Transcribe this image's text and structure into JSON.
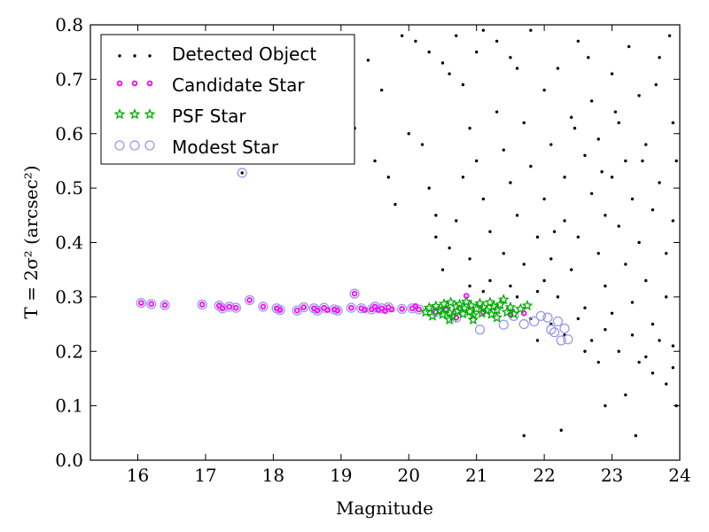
{
  "chart_data": {
    "type": "scatter",
    "xlabel": "Magnitude",
    "ylabel": "T = 2σ² (arcsec²)",
    "xlim": [
      15.3,
      24.0
    ],
    "ylim": [
      0.0,
      0.8
    ],
    "xticks": [
      16,
      17,
      18,
      19,
      20,
      21,
      22,
      23,
      24
    ],
    "yticks": [
      0.0,
      0.1,
      0.2,
      0.3,
      0.4,
      0.5,
      0.6,
      0.7,
      0.8
    ],
    "grid": false,
    "legend_position": "top-left",
    "colors": {
      "detected": "#000000",
      "candidate": "#ff00ff",
      "psf": "#00aa00",
      "modest": "#9999ee"
    },
    "series": [
      {
        "name": "Detected Object",
        "marker": "dot",
        "points": [
          [
            17.54,
            0.528
          ],
          [
            19.2,
            0.61
          ],
          [
            18.9,
            0.73
          ],
          [
            19.4,
            0.735
          ],
          [
            19.6,
            0.68
          ],
          [
            19.9,
            0.78
          ],
          [
            20.1,
            0.77
          ],
          [
            20.3,
            0.75
          ],
          [
            20.5,
            0.73
          ],
          [
            20.6,
            0.71
          ],
          [
            20.7,
            0.78
          ],
          [
            20.8,
            0.69
          ],
          [
            21.0,
            0.75
          ],
          [
            21.1,
            0.79
          ],
          [
            21.3,
            0.77
          ],
          [
            21.5,
            0.74
          ],
          [
            21.6,
            0.72
          ],
          [
            21.8,
            0.79
          ],
          [
            19.5,
            0.55
          ],
          [
            19.7,
            0.52
          ],
          [
            19.8,
            0.47
          ],
          [
            20.0,
            0.6
          ],
          [
            20.2,
            0.58
          ],
          [
            20.3,
            0.5
          ],
          [
            20.4,
            0.45
          ],
          [
            20.4,
            0.41
          ],
          [
            20.5,
            0.35
          ],
          [
            20.6,
            0.39
          ],
          [
            20.7,
            0.44
          ],
          [
            20.8,
            0.52
          ],
          [
            20.9,
            0.61
          ],
          [
            20.9,
            0.37
          ],
          [
            21.0,
            0.55
          ],
          [
            21.1,
            0.48
          ],
          [
            21.2,
            0.42
          ],
          [
            21.2,
            0.33
          ],
          [
            21.3,
            0.64
          ],
          [
            21.4,
            0.57
          ],
          [
            21.4,
            0.38
          ],
          [
            21.5,
            0.51
          ],
          [
            21.6,
            0.45
          ],
          [
            21.7,
            0.36
          ],
          [
            21.7,
            0.62
          ],
          [
            21.8,
            0.54
          ],
          [
            21.9,
            0.41
          ],
          [
            21.9,
            0.31
          ],
          [
            22.0,
            0.68
          ],
          [
            22.0,
            0.48
          ],
          [
            22.1,
            0.58
          ],
          [
            22.1,
            0.37
          ],
          [
            22.2,
            0.72
          ],
          [
            22.2,
            0.3
          ],
          [
            22.3,
            0.52
          ],
          [
            22.3,
            0.44
          ],
          [
            22.4,
            0.63
          ],
          [
            22.4,
            0.35
          ],
          [
            22.5,
            0.77
          ],
          [
            22.5,
            0.41
          ],
          [
            22.6,
            0.56
          ],
          [
            22.6,
            0.28
          ],
          [
            22.7,
            0.49
          ],
          [
            22.7,
            0.66
          ],
          [
            22.8,
            0.38
          ],
          [
            22.8,
            0.59
          ],
          [
            22.9,
            0.45
          ],
          [
            22.9,
            0.32
          ],
          [
            23.0,
            0.71
          ],
          [
            23.0,
            0.52
          ],
          [
            23.0,
            0.27
          ],
          [
            23.1,
            0.43
          ],
          [
            23.1,
            0.62
          ],
          [
            23.2,
            0.36
          ],
          [
            23.2,
            0.55
          ],
          [
            23.3,
            0.48
          ],
          [
            23.3,
            0.29
          ],
          [
            23.4,
            0.67
          ],
          [
            23.4,
            0.4
          ],
          [
            23.5,
            0.58
          ],
          [
            23.5,
            0.33
          ],
          [
            23.6,
            0.46
          ],
          [
            23.6,
            0.25
          ],
          [
            23.7,
            0.74
          ],
          [
            23.7,
            0.51
          ],
          [
            23.8,
            0.38
          ],
          [
            23.8,
            0.3
          ],
          [
            23.9,
            0.62
          ],
          [
            23.9,
            0.44
          ],
          [
            23.9,
            0.21
          ],
          [
            22.1,
            0.25
          ],
          [
            22.3,
            0.23
          ],
          [
            22.5,
            0.26
          ],
          [
            22.7,
            0.22
          ],
          [
            22.9,
            0.24
          ],
          [
            23.1,
            0.2
          ],
          [
            23.3,
            0.23
          ],
          [
            23.5,
            0.19
          ],
          [
            23.7,
            0.22
          ],
          [
            23.9,
            0.17
          ],
          [
            23.8,
            0.14
          ],
          [
            23.6,
            0.16
          ],
          [
            23.4,
            0.18
          ],
          [
            23.2,
            0.12
          ],
          [
            22.8,
            0.18
          ],
          [
            22.6,
            0.2
          ],
          [
            22.9,
            0.1
          ],
          [
            23.95,
            0.1
          ],
          [
            21.7,
            0.045
          ],
          [
            22.25,
            0.055
          ],
          [
            23.35,
            0.045
          ],
          [
            21.9,
            0.22
          ],
          [
            21.6,
            0.3
          ],
          [
            21.8,
            0.26
          ],
          [
            22.0,
            0.33
          ],
          [
            20.9,
            0.32
          ],
          [
            21.1,
            0.31
          ],
          [
            21.5,
            0.32
          ],
          [
            22.15,
            0.42
          ],
          [
            22.45,
            0.61
          ],
          [
            22.65,
            0.74
          ],
          [
            22.85,
            0.53
          ],
          [
            23.05,
            0.64
          ],
          [
            23.25,
            0.76
          ],
          [
            23.45,
            0.55
          ],
          [
            23.65,
            0.69
          ],
          [
            23.85,
            0.78
          ],
          [
            23.95,
            0.55
          ]
        ]
      },
      {
        "name": "Candidate Star",
        "marker": "ring",
        "points": [
          [
            16.05,
            0.289
          ],
          [
            16.2,
            0.287
          ],
          [
            16.4,
            0.285
          ],
          [
            16.95,
            0.286
          ],
          [
            17.2,
            0.284
          ],
          [
            17.25,
            0.279
          ],
          [
            17.35,
            0.282
          ],
          [
            17.45,
            0.28
          ],
          [
            17.65,
            0.294
          ],
          [
            17.85,
            0.282
          ],
          [
            18.05,
            0.279
          ],
          [
            18.1,
            0.276
          ],
          [
            18.35,
            0.275
          ],
          [
            18.45,
            0.281
          ],
          [
            18.6,
            0.279
          ],
          [
            18.65,
            0.275
          ],
          [
            18.75,
            0.28
          ],
          [
            18.8,
            0.276
          ],
          [
            18.9,
            0.277
          ],
          [
            18.95,
            0.275
          ],
          [
            19.15,
            0.28
          ],
          [
            19.2,
            0.306
          ],
          [
            19.3,
            0.279
          ],
          [
            19.35,
            0.276
          ],
          [
            19.45,
            0.277
          ],
          [
            19.5,
            0.282
          ],
          [
            19.55,
            0.276
          ],
          [
            19.6,
            0.279
          ],
          [
            19.65,
            0.274
          ],
          [
            19.7,
            0.281
          ],
          [
            19.75,
            0.277
          ],
          [
            19.9,
            0.278
          ],
          [
            20.05,
            0.279
          ],
          [
            20.1,
            0.283
          ],
          [
            20.15,
            0.277
          ],
          [
            20.4,
            0.272
          ],
          [
            20.55,
            0.276
          ],
          [
            20.7,
            0.262
          ],
          [
            20.85,
            0.302
          ],
          [
            21.1,
            0.272
          ],
          [
            21.5,
            0.268
          ],
          [
            21.7,
            0.27
          ]
        ]
      },
      {
        "name": "PSF Star",
        "marker": "star",
        "points": [
          [
            20.25,
            0.272
          ],
          [
            20.3,
            0.28
          ],
          [
            20.35,
            0.265
          ],
          [
            20.4,
            0.283
          ],
          [
            20.45,
            0.275
          ],
          [
            20.5,
            0.268
          ],
          [
            20.52,
            0.287
          ],
          [
            20.55,
            0.278
          ],
          [
            20.6,
            0.271
          ],
          [
            20.62,
            0.29
          ],
          [
            20.65,
            0.264
          ],
          [
            20.7,
            0.282
          ],
          [
            20.72,
            0.274
          ],
          [
            20.75,
            0.286
          ],
          [
            20.8,
            0.269
          ],
          [
            20.82,
            0.279
          ],
          [
            20.85,
            0.291
          ],
          [
            20.9,
            0.273
          ],
          [
            20.92,
            0.284
          ],
          [
            20.95,
            0.266
          ],
          [
            21.0,
            0.278
          ],
          [
            21.05,
            0.288
          ],
          [
            21.08,
            0.27
          ],
          [
            21.1,
            0.281
          ],
          [
            21.15,
            0.275
          ],
          [
            21.2,
            0.29
          ],
          [
            21.22,
            0.268
          ],
          [
            21.25,
            0.283
          ],
          [
            21.3,
            0.276
          ],
          [
            21.35,
            0.286
          ],
          [
            21.4,
            0.295
          ],
          [
            21.45,
            0.272
          ],
          [
            21.5,
            0.281
          ],
          [
            21.55,
            0.269
          ],
          [
            21.65,
            0.278
          ],
          [
            21.75,
            0.284
          ],
          [
            20.6,
            0.258
          ],
          [
            20.95,
            0.258
          ],
          [
            21.3,
            0.262
          ]
        ]
      },
      {
        "name": "Modest Star",
        "marker": "circle",
        "points": [
          [
            17.54,
            0.528
          ],
          [
            16.05,
            0.289
          ],
          [
            16.2,
            0.287
          ],
          [
            16.4,
            0.285
          ],
          [
            16.95,
            0.286
          ],
          [
            17.2,
            0.284
          ],
          [
            17.25,
            0.279
          ],
          [
            17.35,
            0.282
          ],
          [
            17.45,
            0.28
          ],
          [
            17.65,
            0.294
          ],
          [
            17.85,
            0.282
          ],
          [
            18.05,
            0.279
          ],
          [
            18.1,
            0.276
          ],
          [
            18.35,
            0.275
          ],
          [
            18.45,
            0.281
          ],
          [
            18.6,
            0.279
          ],
          [
            18.65,
            0.275
          ],
          [
            18.75,
            0.28
          ],
          [
            18.9,
            0.277
          ],
          [
            18.95,
            0.275
          ],
          [
            19.15,
            0.28
          ],
          [
            19.2,
            0.306
          ],
          [
            19.3,
            0.279
          ],
          [
            19.45,
            0.277
          ],
          [
            19.5,
            0.282
          ],
          [
            19.6,
            0.279
          ],
          [
            19.7,
            0.281
          ],
          [
            19.9,
            0.278
          ],
          [
            20.05,
            0.279
          ],
          [
            20.15,
            0.277
          ],
          [
            20.4,
            0.272
          ],
          [
            20.7,
            0.262
          ],
          [
            21.05,
            0.24
          ],
          [
            21.4,
            0.249
          ],
          [
            21.55,
            0.265
          ],
          [
            21.7,
            0.25
          ],
          [
            21.85,
            0.255
          ],
          [
            22.05,
            0.262
          ],
          [
            22.1,
            0.24
          ],
          [
            22.2,
            0.255
          ],
          [
            22.25,
            0.22
          ],
          [
            22.3,
            0.242
          ],
          [
            22.35,
            0.222
          ],
          [
            21.95,
            0.265
          ],
          [
            22.15,
            0.235
          ]
        ]
      }
    ]
  }
}
